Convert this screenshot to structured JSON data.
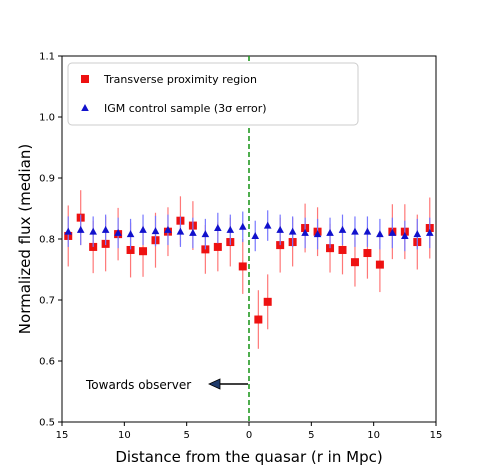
{
  "chart_data": {
    "type": "scatter",
    "xlabel": "Distance from the quasar (r  in Mpc)",
    "ylabel": "Normalized flux (median)",
    "xlim": [
      -15,
      15
    ],
    "ylim": [
      0.5,
      1.1
    ],
    "x_tick_positions": [
      -15,
      -10,
      -5,
      0,
      5,
      10,
      15
    ],
    "x_tick_labels": [
      "15",
      "10",
      "5",
      "0",
      "5",
      "10",
      "15"
    ],
    "y_ticks": [
      0.5,
      0.6,
      0.7,
      0.8,
      0.9,
      1.0,
      1.1
    ],
    "y_tick_labels": [
      "0.5",
      "0.6",
      "0.7",
      "0.8",
      "0.9",
      "1.0",
      "1.1"
    ],
    "vline_x": 0,
    "legend_position": "top-left",
    "series": [
      {
        "name": "Transverse proximity region",
        "marker": "square",
        "color": "#ee1111",
        "points": [
          {
            "x": -14.5,
            "y": 0.805,
            "err": 0.05
          },
          {
            "x": -13.5,
            "y": 0.835,
            "err": 0.045
          },
          {
            "x": -12.5,
            "y": 0.787,
            "err": 0.043
          },
          {
            "x": -11.5,
            "y": 0.792,
            "err": 0.045
          },
          {
            "x": -10.5,
            "y": 0.808,
            "err": 0.043
          },
          {
            "x": -9.5,
            "y": 0.782,
            "err": 0.045
          },
          {
            "x": -8.5,
            "y": 0.78,
            "err": 0.042
          },
          {
            "x": -7.5,
            "y": 0.798,
            "err": 0.045
          },
          {
            "x": -6.5,
            "y": 0.812,
            "err": 0.04
          },
          {
            "x": -5.5,
            "y": 0.83,
            "err": 0.04
          },
          {
            "x": -4.5,
            "y": 0.822,
            "err": 0.04
          },
          {
            "x": -3.5,
            "y": 0.783,
            "err": 0.04
          },
          {
            "x": -2.5,
            "y": 0.787,
            "err": 0.04
          },
          {
            "x": -1.5,
            "y": 0.795,
            "err": 0.04
          },
          {
            "x": -0.5,
            "y": 0.755,
            "err": 0.045
          },
          {
            "x": 0.75,
            "y": 0.668,
            "err": 0.048
          },
          {
            "x": 1.5,
            "y": 0.697,
            "err": 0.045
          },
          {
            "x": 2.5,
            "y": 0.79,
            "err": 0.045
          },
          {
            "x": 3.5,
            "y": 0.795,
            "err": 0.04
          },
          {
            "x": 4.5,
            "y": 0.818,
            "err": 0.04
          },
          {
            "x": 5.5,
            "y": 0.812,
            "err": 0.04
          },
          {
            "x": 6.5,
            "y": 0.785,
            "err": 0.04
          },
          {
            "x": 7.5,
            "y": 0.782,
            "err": 0.04
          },
          {
            "x": 8.5,
            "y": 0.762,
            "err": 0.04
          },
          {
            "x": 9.5,
            "y": 0.777,
            "err": 0.042
          },
          {
            "x": 10.5,
            "y": 0.758,
            "err": 0.045
          },
          {
            "x": 11.5,
            "y": 0.812,
            "err": 0.045
          },
          {
            "x": 12.5,
            "y": 0.812,
            "err": 0.045
          },
          {
            "x": 13.5,
            "y": 0.795,
            "err": 0.045
          },
          {
            "x": 14.5,
            "y": 0.818,
            "err": 0.05
          }
        ]
      },
      {
        "name": "IGM control sample (3σ error)",
        "marker": "triangle",
        "color": "#1111cc",
        "points": [
          {
            "x": -14.5,
            "y": 0.812,
            "err": 0.025
          },
          {
            "x": -13.5,
            "y": 0.815,
            "err": 0.025
          },
          {
            "x": -12.5,
            "y": 0.812,
            "err": 0.025
          },
          {
            "x": -11.5,
            "y": 0.815,
            "err": 0.025
          },
          {
            "x": -10.5,
            "y": 0.81,
            "err": 0.025
          },
          {
            "x": -9.5,
            "y": 0.808,
            "err": 0.025
          },
          {
            "x": -8.5,
            "y": 0.815,
            "err": 0.025
          },
          {
            "x": -7.5,
            "y": 0.813,
            "err": 0.025
          },
          {
            "x": -6.5,
            "y": 0.815,
            "err": 0.025
          },
          {
            "x": -5.5,
            "y": 0.812,
            "err": 0.025
          },
          {
            "x": -4.5,
            "y": 0.81,
            "err": 0.025
          },
          {
            "x": -3.5,
            "y": 0.808,
            "err": 0.025
          },
          {
            "x": -2.5,
            "y": 0.818,
            "err": 0.025
          },
          {
            "x": -1.5,
            "y": 0.815,
            "err": 0.025
          },
          {
            "x": -0.5,
            "y": 0.82,
            "err": 0.025
          },
          {
            "x": 0.5,
            "y": 0.805,
            "err": 0.025
          },
          {
            "x": 1.5,
            "y": 0.822,
            "err": 0.025
          },
          {
            "x": 2.5,
            "y": 0.815,
            "err": 0.025
          },
          {
            "x": 3.5,
            "y": 0.812,
            "err": 0.025
          },
          {
            "x": 4.5,
            "y": 0.81,
            "err": 0.025
          },
          {
            "x": 5.5,
            "y": 0.808,
            "err": 0.025
          },
          {
            "x": 6.5,
            "y": 0.81,
            "err": 0.025
          },
          {
            "x": 7.5,
            "y": 0.815,
            "err": 0.025
          },
          {
            "x": 8.5,
            "y": 0.812,
            "err": 0.025
          },
          {
            "x": 9.5,
            "y": 0.812,
            "err": 0.025
          },
          {
            "x": 10.5,
            "y": 0.808,
            "err": 0.025
          },
          {
            "x": 11.5,
            "y": 0.81,
            "err": 0.025
          },
          {
            "x": 12.5,
            "y": 0.805,
            "err": 0.025
          },
          {
            "x": 13.5,
            "y": 0.808,
            "err": 0.025
          },
          {
            "x": 14.5,
            "y": 0.81,
            "err": 0.025
          }
        ]
      }
    ],
    "annotation": {
      "text": "Towards observer",
      "arrow": "left"
    },
    "vline_color": "#229922"
  }
}
